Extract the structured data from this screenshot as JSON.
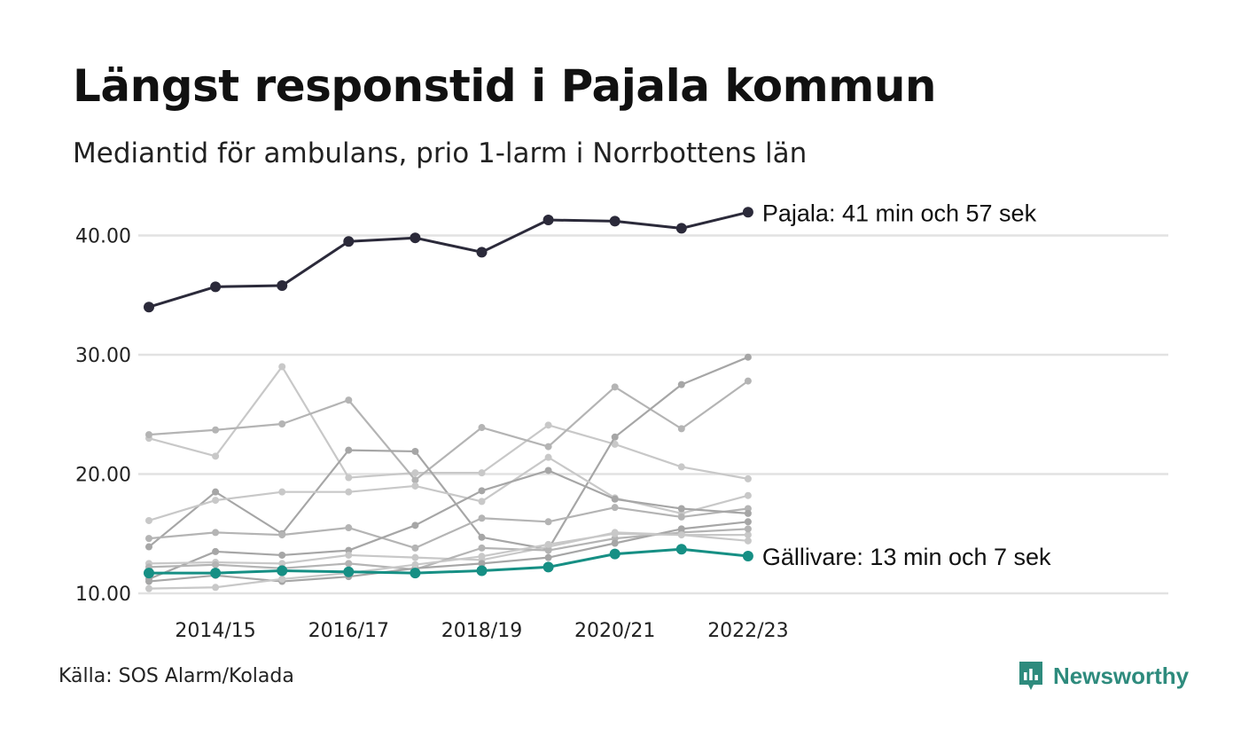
{
  "header": {
    "title": "Längst responstid i Pajala kommun",
    "subtitle": "Mediantid för ambulans, prio 1-larm i Norrbottens län"
  },
  "footer": {
    "source": "Källa: SOS Alarm/Kolada",
    "logo_text": "Newsworthy"
  },
  "colors": {
    "highlight_top": "#2b2a3a",
    "highlight_bottom": "#168f84",
    "background_series": [
      "#c8c8c8",
      "#b4b4b4",
      "#a6a6a6"
    ],
    "gridline": "#e2e2e2",
    "logo": "#2e8b7d"
  },
  "chart_data": {
    "type": "line",
    "title": "Längst responstid i Pajala kommun",
    "subtitle": "Mediantid för ambulans, prio 1-larm i Norrbottens län",
    "x": [
      "2013/14",
      "2014/15",
      "2015/16",
      "2016/17",
      "2017/18",
      "2018/19",
      "2019/20",
      "2020/21",
      "2021/22",
      "2022/23"
    ],
    "x_tick_labels": [
      "2014/15",
      "2016/17",
      "2018/19",
      "2020/21",
      "2022/23"
    ],
    "y_ticks": [
      "10.00",
      "20.00",
      "30.00",
      "40.00"
    ],
    "ylim": [
      10,
      42.5
    ],
    "grid": true,
    "series": [
      {
        "name": "Pajala",
        "highlight": "top",
        "label": "Pajala: 41 min och 57 sek",
        "values": [
          34.0,
          35.7,
          35.8,
          39.5,
          39.8,
          38.6,
          41.3,
          41.2,
          40.6,
          41.95
        ]
      },
      {
        "name": "Gällivare",
        "highlight": "bottom",
        "label": "Gällivare: 13 min och 7 sek",
        "values": [
          11.7,
          11.7,
          11.9,
          11.8,
          11.7,
          11.9,
          12.2,
          13.3,
          13.7,
          13.12
        ]
      },
      {
        "values": [
          23.0,
          21.5,
          29.0,
          19.7,
          20.1,
          20.1,
          24.1,
          22.5,
          20.6,
          19.6
        ]
      },
      {
        "values": [
          23.3,
          23.7,
          24.2,
          26.2,
          19.5,
          23.9,
          22.3,
          27.3,
          23.8,
          27.8
        ]
      },
      {
        "values": [
          13.9,
          18.5,
          15.0,
          22.0,
          21.9,
          14.7,
          13.7,
          23.1,
          27.5,
          29.8
        ]
      },
      {
        "values": [
          16.1,
          17.8,
          18.5,
          18.5,
          19.0,
          17.7,
          21.4,
          18.0,
          16.7,
          18.2
        ]
      },
      {
        "values": [
          14.6,
          15.1,
          14.9,
          15.5,
          13.8,
          16.3,
          16.0,
          17.2,
          16.4,
          17.1
        ]
      },
      {
        "values": [
          11.2,
          13.5,
          13.2,
          13.6,
          15.7,
          18.6,
          20.3,
          17.9,
          17.1,
          16.7
        ]
      },
      {
        "values": [
          12.5,
          12.6,
          12.5,
          13.2,
          13.0,
          12.8,
          13.9,
          15.1,
          14.9,
          14.9
        ]
      },
      {
        "values": [
          12.2,
          12.4,
          12.1,
          12.5,
          12.0,
          13.8,
          13.6,
          14.6,
          15.1,
          15.4
        ]
      },
      {
        "values": [
          11.0,
          11.5,
          11.0,
          11.4,
          12.1,
          12.5,
          13.0,
          14.2,
          15.4,
          16.0
        ]
      },
      {
        "values": [
          10.4,
          10.5,
          11.2,
          11.7,
          12.4,
          13.1,
          14.1,
          15.0,
          14.9,
          14.4
        ]
      }
    ]
  }
}
